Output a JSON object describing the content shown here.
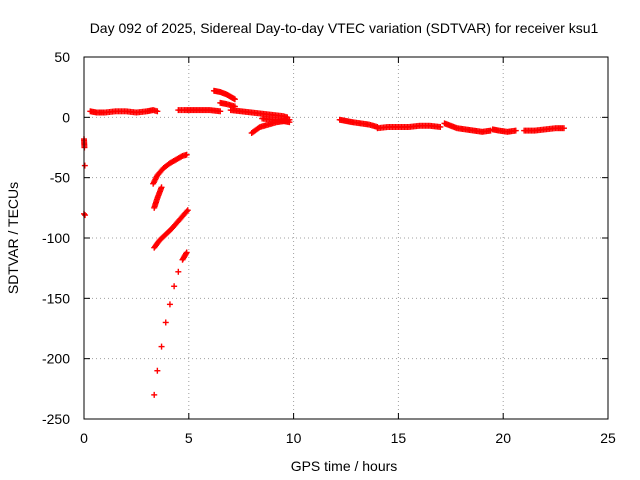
{
  "chart_data": {
    "type": "scatter",
    "title": "Day 092 of 2025, Sidereal Day-to-day VTEC variation (SDTVAR) for receiver ksu1",
    "xlabel": "GPS time / hours",
    "ylabel": "SDTVAR / TECUs",
    "xlim": [
      0,
      25
    ],
    "ylim": [
      -250,
      50
    ],
    "xticks": [
      0,
      5,
      10,
      15,
      20,
      25
    ],
    "yticks": [
      -250,
      -200,
      -150,
      -100,
      -50,
      0,
      50
    ],
    "grid": true,
    "legend": "none",
    "marker": "plus",
    "color": "#ff0000",
    "series": [
      {
        "points": [
          [
            0.0,
            -18
          ],
          [
            0.02,
            -25
          ],
          [
            0.04,
            -40
          ],
          [
            0.0,
            -80
          ],
          [
            0.05,
            -81
          ]
        ]
      },
      {
        "points": [
          [
            0.3,
            5
          ],
          [
            0.6,
            4
          ],
          [
            1.0,
            4
          ],
          [
            1.5,
            5
          ],
          [
            2.0,
            5
          ],
          [
            2.5,
            4
          ],
          [
            3.0,
            5
          ],
          [
            3.3,
            6
          ],
          [
            3.5,
            5
          ]
        ]
      },
      {
        "points": [
          [
            3.3,
            -55
          ],
          [
            3.5,
            -48
          ],
          [
            3.8,
            -42
          ],
          [
            4.1,
            -38
          ],
          [
            4.4,
            -35
          ],
          [
            4.7,
            -32
          ],
          [
            4.9,
            -31
          ]
        ]
      },
      {
        "points": [
          [
            3.35,
            -75
          ],
          [
            3.5,
            -67
          ],
          [
            3.7,
            -58
          ]
        ]
      },
      {
        "points": [
          [
            3.35,
            -108
          ],
          [
            3.6,
            -102
          ],
          [
            3.9,
            -97
          ],
          [
            4.2,
            -92
          ],
          [
            4.5,
            -86
          ],
          [
            4.8,
            -80
          ],
          [
            4.95,
            -77
          ]
        ]
      },
      {
        "points": [
          [
            3.35,
            -230
          ],
          [
            3.5,
            -210
          ],
          [
            3.7,
            -190
          ],
          [
            3.9,
            -170
          ],
          [
            4.1,
            -155
          ],
          [
            4.3,
            -140
          ],
          [
            4.5,
            -128
          ],
          [
            4.7,
            -118
          ],
          [
            4.9,
            -112
          ]
        ]
      },
      {
        "points": [
          [
            4.5,
            6
          ],
          [
            4.8,
            6
          ],
          [
            5.0,
            6
          ],
          [
            5.5,
            6
          ],
          [
            6.0,
            6
          ],
          [
            6.5,
            5
          ]
        ]
      },
      {
        "points": [
          [
            6.2,
            22
          ],
          [
            6.5,
            21
          ],
          [
            6.8,
            19
          ],
          [
            7.0,
            17
          ],
          [
            7.2,
            15
          ]
        ]
      },
      {
        "points": [
          [
            6.5,
            12
          ],
          [
            6.8,
            11
          ],
          [
            7.0,
            10
          ],
          [
            7.2,
            9
          ]
        ]
      },
      {
        "points": [
          [
            7.0,
            6
          ],
          [
            7.5,
            5
          ],
          [
            8.0,
            4
          ],
          [
            8.5,
            3
          ],
          [
            9.0,
            2
          ],
          [
            9.5,
            1
          ],
          [
            9.7,
            0
          ]
        ]
      },
      {
        "points": [
          [
            8.0,
            -13
          ],
          [
            8.4,
            -8
          ],
          [
            8.8,
            -6
          ],
          [
            9.2,
            -4
          ],
          [
            9.6,
            -3
          ],
          [
            9.8,
            -2
          ]
        ]
      },
      {
        "points": [
          [
            8.5,
            -1
          ],
          [
            9.0,
            -2
          ],
          [
            9.5,
            -3
          ],
          [
            9.8,
            -4
          ]
        ]
      },
      {
        "points": [
          [
            12.2,
            -2
          ],
          [
            12.5,
            -3
          ],
          [
            12.8,
            -4
          ],
          [
            13.2,
            -5
          ],
          [
            13.6,
            -6
          ],
          [
            14.0,
            -8
          ]
        ]
      },
      {
        "points": [
          [
            14.0,
            -9
          ],
          [
            14.5,
            -8
          ],
          [
            15.0,
            -8
          ],
          [
            15.5,
            -8
          ],
          [
            16.0,
            -7
          ],
          [
            16.5,
            -7
          ],
          [
            17.0,
            -8
          ]
        ]
      },
      {
        "points": [
          [
            17.2,
            -5
          ],
          [
            17.5,
            -7
          ],
          [
            17.8,
            -9
          ],
          [
            18.2,
            -10
          ],
          [
            18.6,
            -11
          ],
          [
            19.0,
            -12
          ],
          [
            19.4,
            -11
          ]
        ]
      },
      {
        "points": [
          [
            19.5,
            -10
          ],
          [
            19.8,
            -11
          ],
          [
            20.2,
            -12
          ],
          [
            20.6,
            -11
          ]
        ]
      },
      {
        "points": [
          [
            21.0,
            -11
          ],
          [
            21.5,
            -11
          ],
          [
            22.0,
            -10
          ],
          [
            22.5,
            -9
          ],
          [
            22.9,
            -9
          ]
        ]
      }
    ]
  }
}
